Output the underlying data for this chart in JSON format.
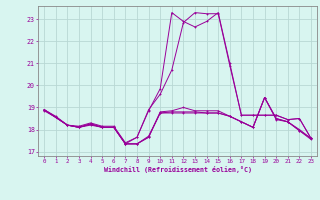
{
  "xlabel": "Windchill (Refroidissement éolien,°C)",
  "ylabel": "",
  "bg_color": "#d8f5f0",
  "grid_color": "#b8d8d4",
  "line_color": "#990099",
  "spine_color": "#888888",
  "xlim": [
    -0.5,
    23.5
  ],
  "ylim": [
    16.8,
    23.6
  ],
  "yticks": [
    17,
    18,
    19,
    20,
    21,
    22,
    23
  ],
  "xticks": [
    0,
    1,
    2,
    3,
    4,
    5,
    6,
    7,
    8,
    9,
    10,
    11,
    12,
    13,
    14,
    15,
    16,
    17,
    18,
    19,
    20,
    21,
    22,
    23
  ],
  "lines": [
    [
      18.9,
      18.6,
      18.2,
      18.1,
      18.2,
      18.1,
      18.1,
      17.35,
      17.35,
      17.65,
      18.8,
      18.85,
      19.0,
      18.85,
      18.85,
      18.85,
      18.6,
      18.35,
      18.1,
      19.45,
      18.5,
      18.35,
      18.0,
      17.6
    ],
    [
      18.9,
      18.55,
      18.2,
      18.15,
      18.3,
      18.15,
      18.15,
      17.4,
      17.65,
      18.85,
      19.85,
      23.3,
      22.9,
      22.65,
      22.9,
      23.3,
      21.0,
      18.65,
      18.65,
      18.65,
      18.65,
      18.45,
      18.5,
      17.6
    ],
    [
      18.9,
      18.55,
      18.2,
      18.1,
      18.25,
      18.1,
      18.1,
      17.35,
      17.35,
      17.7,
      18.75,
      18.8,
      18.8,
      18.8,
      18.75,
      18.75,
      18.6,
      18.35,
      18.1,
      19.45,
      18.5,
      18.35,
      17.95,
      17.6
    ],
    [
      18.9,
      18.55,
      18.2,
      18.1,
      18.25,
      18.1,
      18.1,
      17.35,
      17.65,
      18.9,
      19.6,
      20.7,
      22.85,
      23.3,
      23.25,
      23.25,
      20.9,
      18.65,
      18.65,
      18.65,
      18.65,
      18.45,
      18.5,
      17.6
    ],
    [
      18.85,
      18.55,
      18.2,
      18.1,
      18.25,
      18.1,
      18.1,
      17.35,
      17.35,
      17.65,
      18.75,
      18.75,
      18.75,
      18.75,
      18.75,
      18.75,
      18.6,
      18.35,
      18.1,
      19.45,
      18.45,
      18.35,
      17.95,
      17.55
    ]
  ]
}
